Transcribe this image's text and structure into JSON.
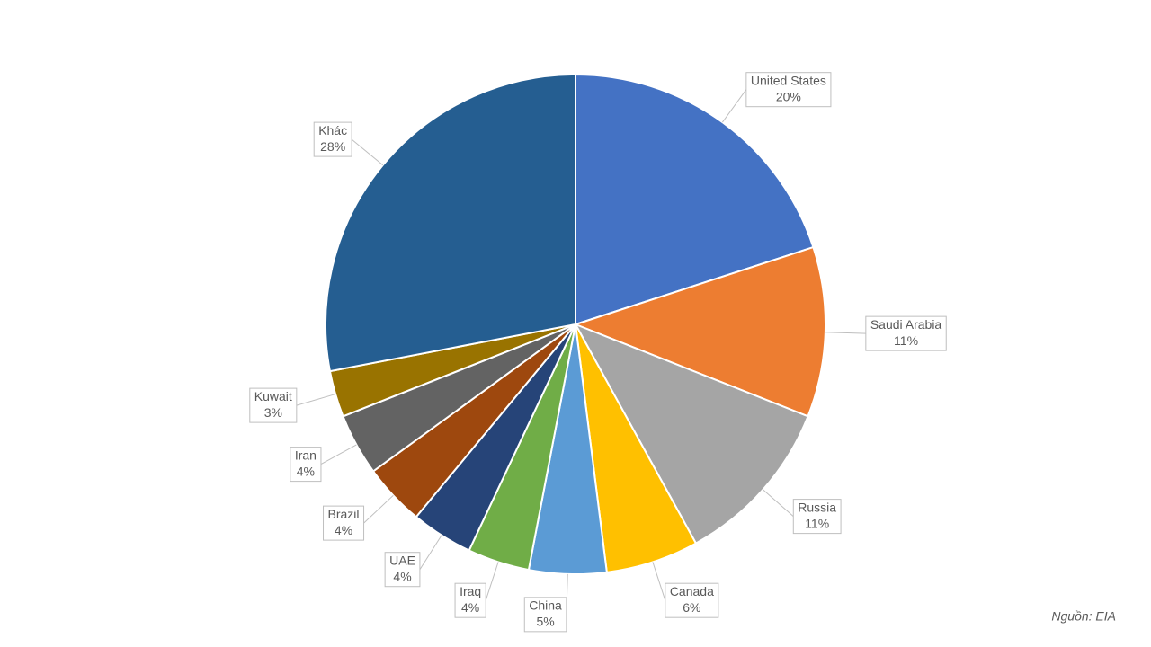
{
  "chart_data": {
    "type": "pie",
    "categories": [
      "United States",
      "Saudi Arabia",
      "Russia",
      "Canada",
      "China",
      "Iraq",
      "UAE",
      "Brazil",
      "Iran",
      "Kuwait",
      "Khác"
    ],
    "values": [
      20,
      11,
      11,
      6,
      5,
      4,
      4,
      4,
      4,
      3,
      28
    ],
    "value_labels": [
      "20%",
      "11%",
      "11%",
      "6%",
      "5%",
      "4%",
      "4%",
      "4%",
      "4%",
      "3%",
      "28%"
    ],
    "colors": [
      "#4472c4",
      "#ed7d31",
      "#a5a5a5",
      "#ffc000",
      "#5b9bd5",
      "#70ad47",
      "#264478",
      "#9e480e",
      "#636363",
      "#997300",
      "#255e91"
    ],
    "source": "Nguồn: EIA"
  }
}
